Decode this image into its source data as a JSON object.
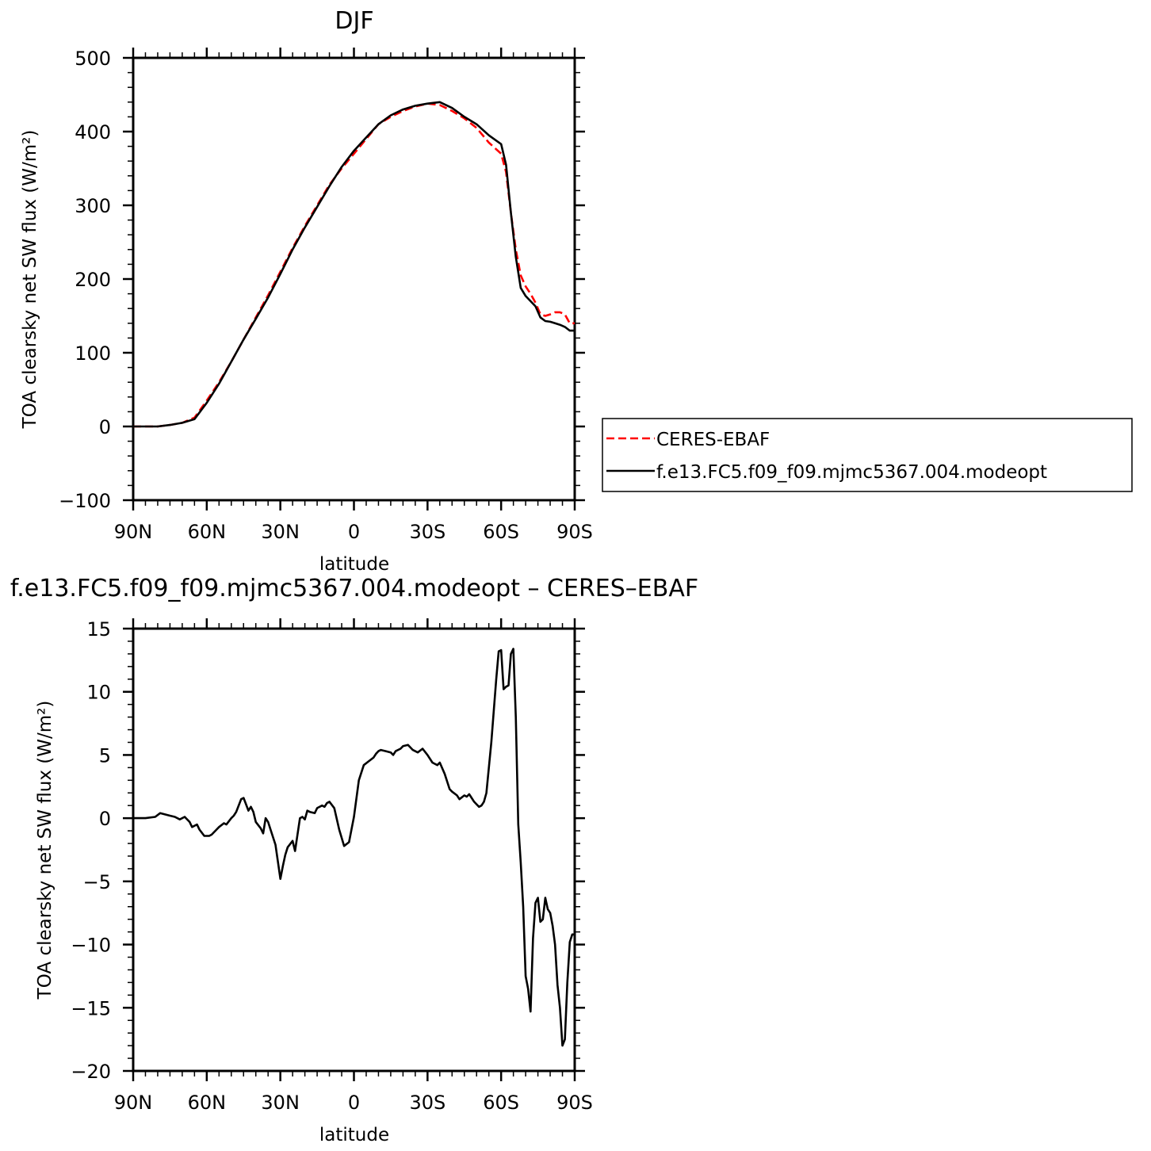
{
  "chart_data": [
    {
      "type": "line",
      "title": "DJF",
      "xlabel": "latitude",
      "ylabel": "TOA clearsky net SW flux (W/m²)",
      "xlim": [
        -90,
        90
      ],
      "ylim": [
        -100,
        500
      ],
      "xticks": [
        {
          "value": -90,
          "label": "90N"
        },
        {
          "value": -60,
          "label": "60N"
        },
        {
          "value": -30,
          "label": "30N"
        },
        {
          "value": 0,
          "label": "0"
        },
        {
          "value": 30,
          "label": "30S"
        },
        {
          "value": 60,
          "label": "60S"
        },
        {
          "value": 90,
          "label": "90S"
        }
      ],
      "yticks": [
        -100,
        0,
        100,
        200,
        300,
        400,
        500
      ],
      "legend_position": "right",
      "series": [
        {
          "name": "CERES-EBAF",
          "color": "#ff0000",
          "style": "dashed",
          "x": [
            -90,
            -85,
            -80,
            -75,
            -70,
            -65,
            -60,
            -55,
            -50,
            -45,
            -40,
            -35,
            -30,
            -25,
            -20,
            -15,
            -10,
            -5,
            0,
            5,
            10,
            15,
            20,
            25,
            30,
            35,
            40,
            45,
            50,
            55,
            60,
            62,
            64,
            66,
            68,
            70,
            72,
            74,
            76,
            78,
            80,
            82,
            84,
            86,
            88,
            90
          ],
          "y": [
            0,
            0,
            0,
            2,
            5,
            12,
            35,
            60,
            88,
            118,
            148,
            178,
            210,
            242,
            272,
            300,
            328,
            350,
            370,
            390,
            410,
            420,
            428,
            434,
            438,
            436,
            428,
            418,
            405,
            385,
            370,
            345,
            290,
            240,
            205,
            190,
            180,
            168,
            152,
            150,
            152,
            155,
            155,
            152,
            140,
            140
          ]
        },
        {
          "name": "f.e13.FC5.f09_f09.mjmc5367.004.modeopt",
          "color": "#000000",
          "style": "solid",
          "x": [
            -90,
            -85,
            -80,
            -75,
            -70,
            -65,
            -60,
            -55,
            -50,
            -45,
            -40,
            -35,
            -30,
            -25,
            -20,
            -15,
            -10,
            -5,
            0,
            5,
            10,
            15,
            20,
            25,
            30,
            35,
            40,
            45,
            50,
            55,
            60,
            62,
            64,
            66,
            68,
            70,
            72,
            74,
            76,
            78,
            80,
            82,
            84,
            86,
            88,
            90
          ],
          "y": [
            0,
            0,
            0,
            2,
            5,
            10,
            32,
            58,
            88,
            118,
            146,
            175,
            207,
            240,
            270,
            298,
            326,
            352,
            374,
            392,
            410,
            422,
            430,
            435,
            438,
            440,
            432,
            420,
            410,
            395,
            383,
            355,
            290,
            230,
            188,
            177,
            170,
            163,
            148,
            143,
            142,
            140,
            138,
            135,
            130,
            130
          ]
        }
      ]
    },
    {
      "type": "line",
      "title": "f.e13.FC5.f09_f09.mjmc5367.004.modeopt – CERES–EBAF",
      "xlabel": "latitude",
      "ylabel": "TOA clearsky net SW flux (W/m²)",
      "xlim": [
        -90,
        90
      ],
      "ylim": [
        -20,
        15
      ],
      "xticks": [
        {
          "value": -90,
          "label": "90N"
        },
        {
          "value": -60,
          "label": "60N"
        },
        {
          "value": -30,
          "label": "30N"
        },
        {
          "value": 0,
          "label": "0"
        },
        {
          "value": 30,
          "label": "30S"
        },
        {
          "value": 60,
          "label": "60S"
        },
        {
          "value": 90,
          "label": "90S"
        }
      ],
      "yticks": [
        -20,
        -15,
        -10,
        -5,
        0,
        5,
        10,
        15
      ],
      "series": [
        {
          "color": "#000000",
          "style": "solid",
          "x": [
            -90,
            -85,
            -81,
            -79,
            -77,
            -75,
            -73,
            -71,
            -69,
            -67,
            -66,
            -64,
            -63,
            -61,
            -59,
            -58,
            -56,
            -55,
            -53,
            -52,
            -50,
            -49,
            -48,
            -46,
            -45,
            -43,
            -42,
            -41,
            -40,
            -38,
            -37,
            -36,
            -35,
            -34,
            -32,
            -30,
            -29,
            -28,
            -27,
            -25,
            -24,
            -22,
            -21,
            -20,
            -19,
            -18,
            -16,
            -15,
            -13,
            -12,
            -11,
            -10,
            -8,
            -6,
            -4,
            -2,
            0,
            2,
            4,
            6,
            8,
            9,
            10,
            11,
            13,
            15,
            16,
            17,
            19,
            20,
            22,
            23,
            24,
            26,
            28,
            30,
            32,
            33,
            34,
            35,
            37,
            39,
            40,
            42,
            43,
            45,
            46,
            47,
            48,
            49,
            50,
            51,
            52,
            53,
            54,
            55,
            56,
            57,
            58,
            59,
            60,
            61,
            62,
            63,
            64,
            65,
            66,
            67,
            68,
            69,
            70,
            71,
            72,
            73,
            74,
            75,
            76,
            77,
            78,
            79,
            80,
            81,
            82,
            83,
            84,
            85,
            86,
            87,
            88,
            89,
            90
          ],
          "y": [
            0,
            0,
            0.1,
            0.4,
            0.3,
            0.2,
            0.1,
            -0.1,
            0.1,
            -0.3,
            -0.7,
            -0.5,
            -0.9,
            -1.4,
            -1.4,
            -1.3,
            -0.9,
            -0.7,
            -0.4,
            -0.5,
            0,
            0.2,
            0.5,
            1.5,
            1.6,
            0.6,
            0.9,
            0.5,
            -0.3,
            -0.8,
            -1.2,
            0,
            -0.3,
            -0.9,
            -2.1,
            -4.8,
            -3.8,
            -2.9,
            -2.3,
            -1.8,
            -2.6,
            0,
            0.1,
            -0.1,
            0.6,
            0.5,
            0.4,
            0.8,
            1.0,
            0.9,
            1.2,
            1.3,
            0.8,
            -0.9,
            -2.2,
            -1.9,
            0.1,
            3.0,
            4.2,
            4.5,
            4.8,
            5.1,
            5.3,
            5.4,
            5.3,
            5.2,
            5.0,
            5.3,
            5.5,
            5.7,
            5.8,
            5.6,
            5.4,
            5.2,
            5.5,
            5.0,
            4.4,
            4.3,
            4.2,
            4.4,
            3.5,
            2.3,
            2.1,
            1.8,
            1.5,
            1.8,
            1.7,
            1.9,
            1.6,
            1.3,
            1.1,
            0.9,
            1.0,
            1.3,
            2.0,
            4.0,
            6.0,
            8.5,
            11.0,
            13.2,
            13.3,
            10.2,
            10.4,
            10.5,
            13.0,
            13.4,
            8.0,
            -0.5,
            -3.5,
            -7.0,
            -12.5,
            -13.5,
            -15.3,
            -9.5,
            -6.7,
            -6.3,
            -8.2,
            -8.0,
            -6.3,
            -7.2,
            -7.5,
            -8.5,
            -10.0,
            -13.2,
            -15.0,
            -18.0,
            -17.5,
            -13.0,
            -9.8,
            -9.2,
            -9.2
          ]
        }
      ]
    }
  ]
}
